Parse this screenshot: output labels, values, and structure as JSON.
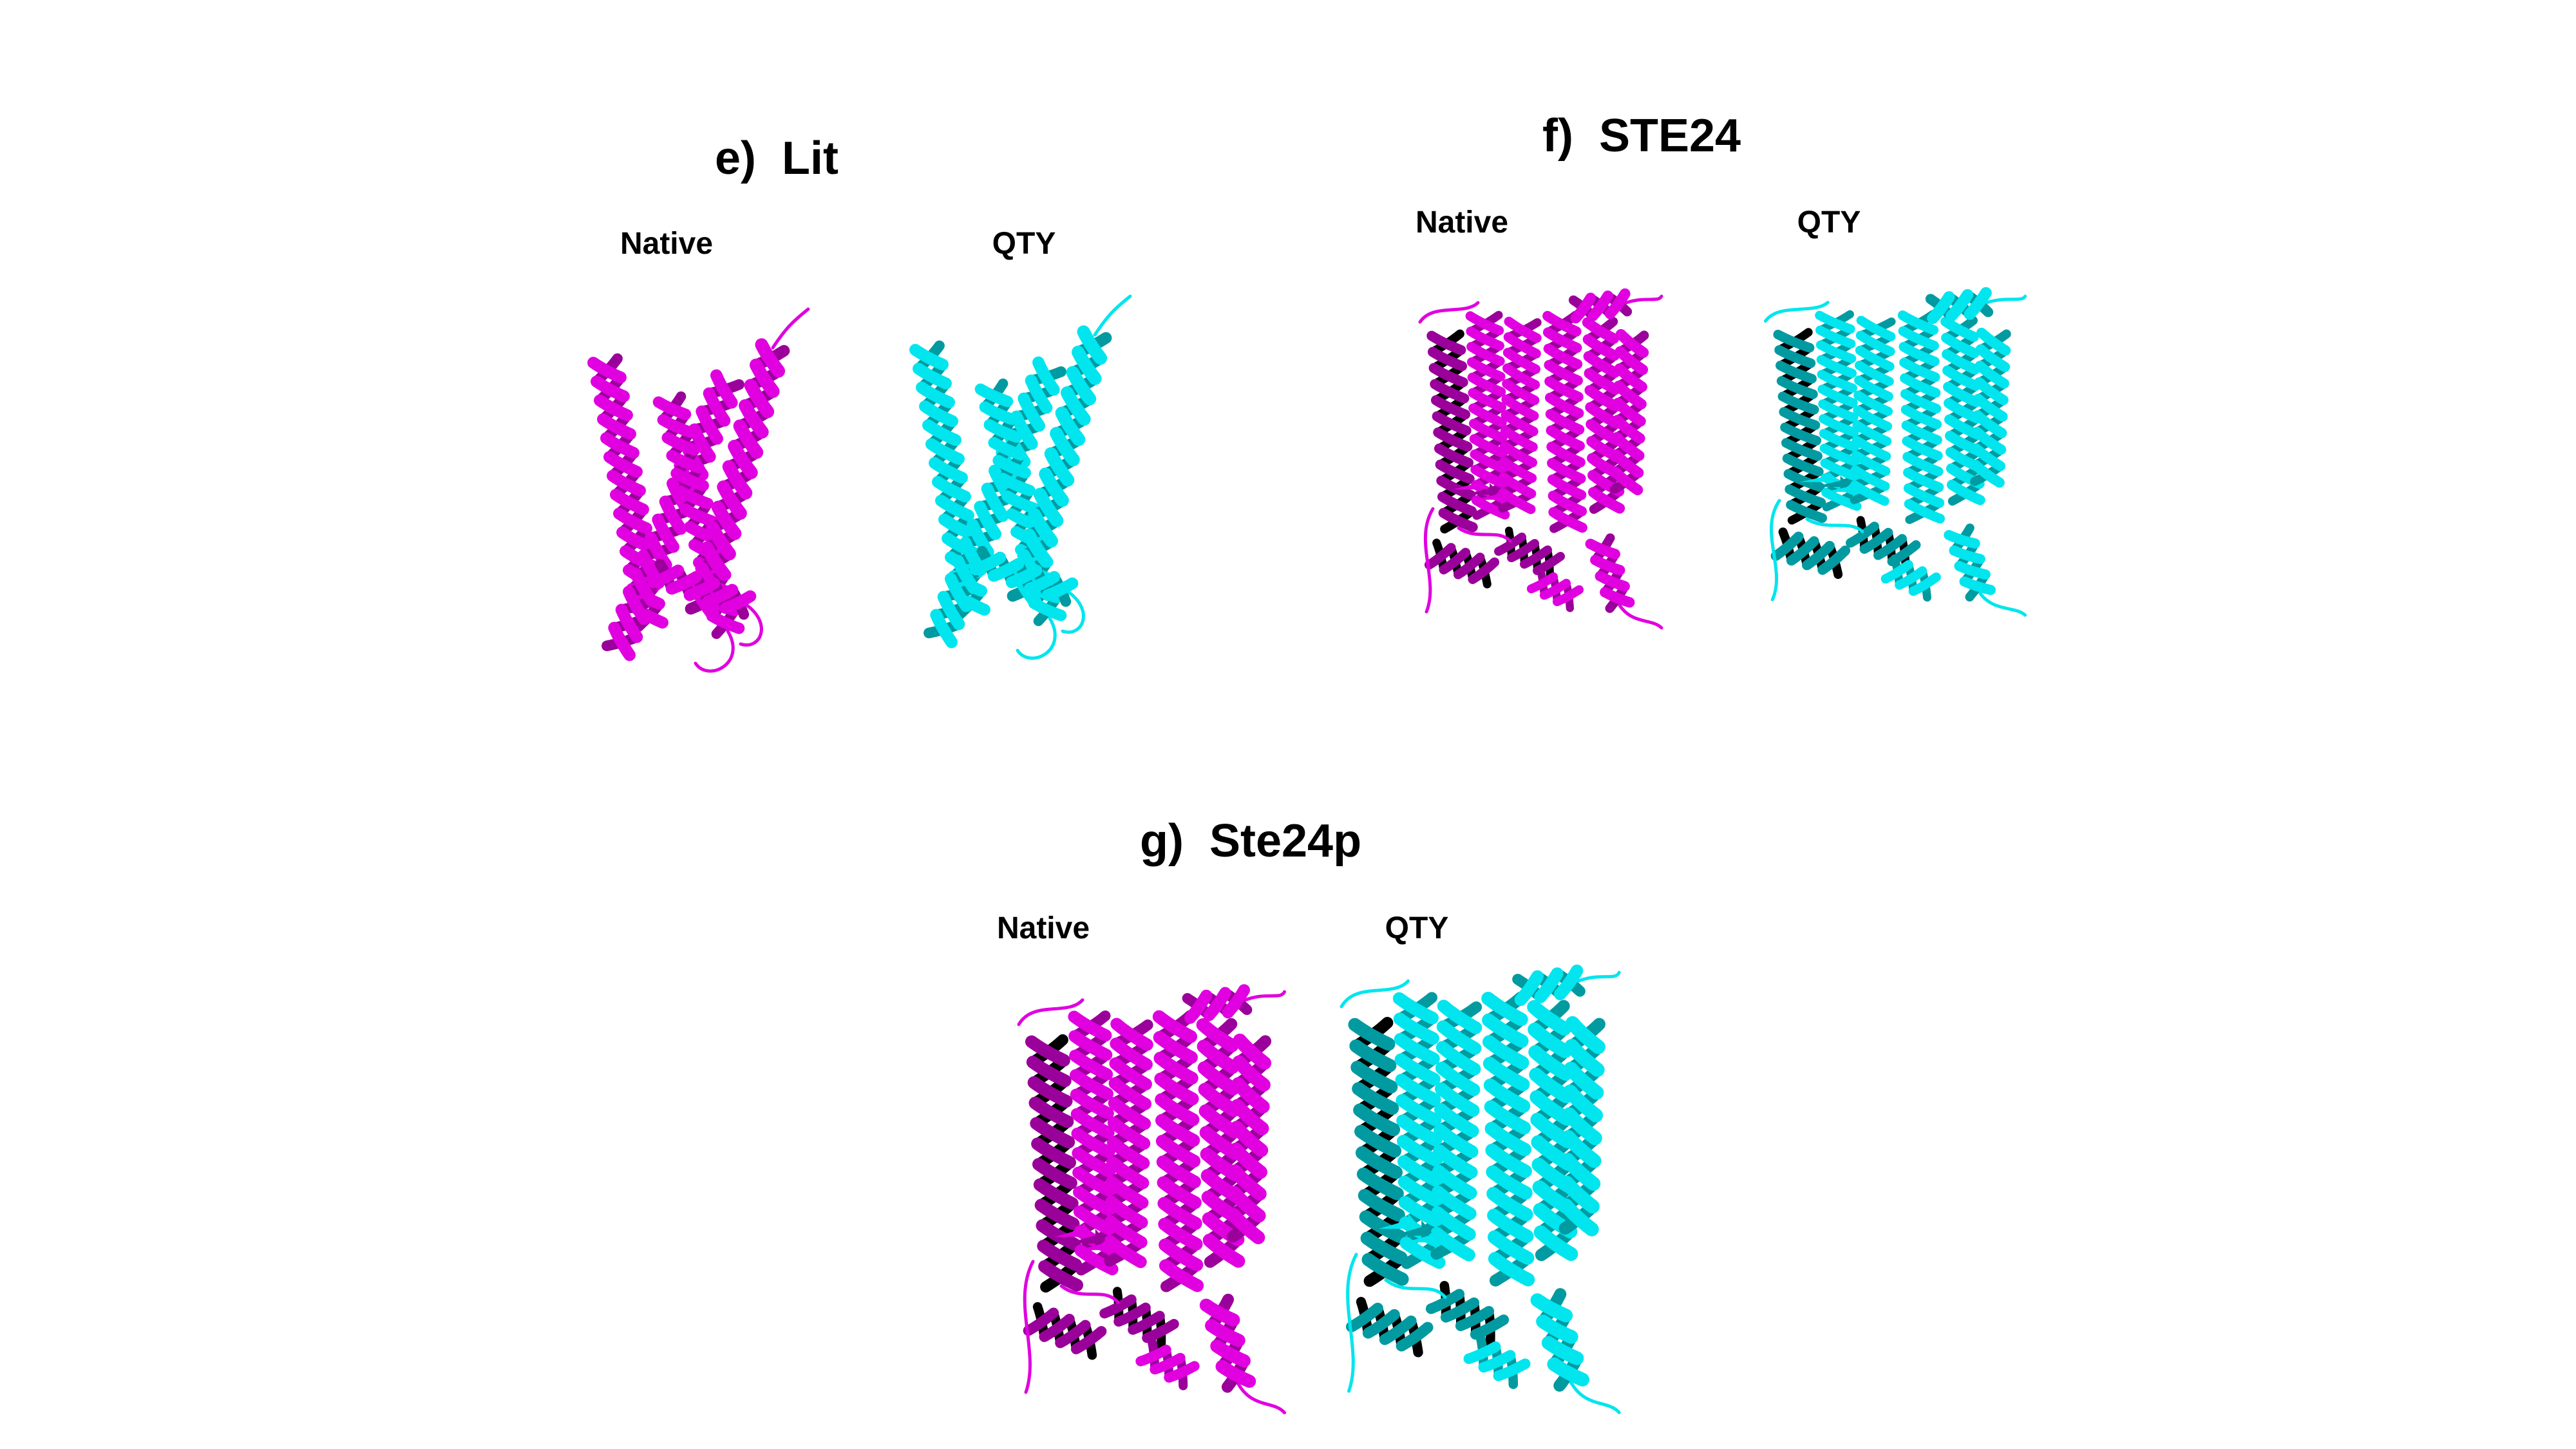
{
  "panels": [
    {
      "title": "e)  Lit",
      "left_label": "Native",
      "right_label": "QTY"
    },
    {
      "title": "f)  STE24",
      "left_label": "Native",
      "right_label": "QTY"
    },
    {
      "title": "g)  Ste24p",
      "left_label": "Native",
      "right_label": "QTY"
    }
  ],
  "colors": {
    "native": "#e000e0",
    "native_dark": "#9a009a",
    "qty": "#00e5ee",
    "qty_dark": "#009aa0"
  },
  "icons": {
    "native_structure": "protein-ribbon-magenta",
    "qty_structure": "protein-ribbon-cyan"
  }
}
